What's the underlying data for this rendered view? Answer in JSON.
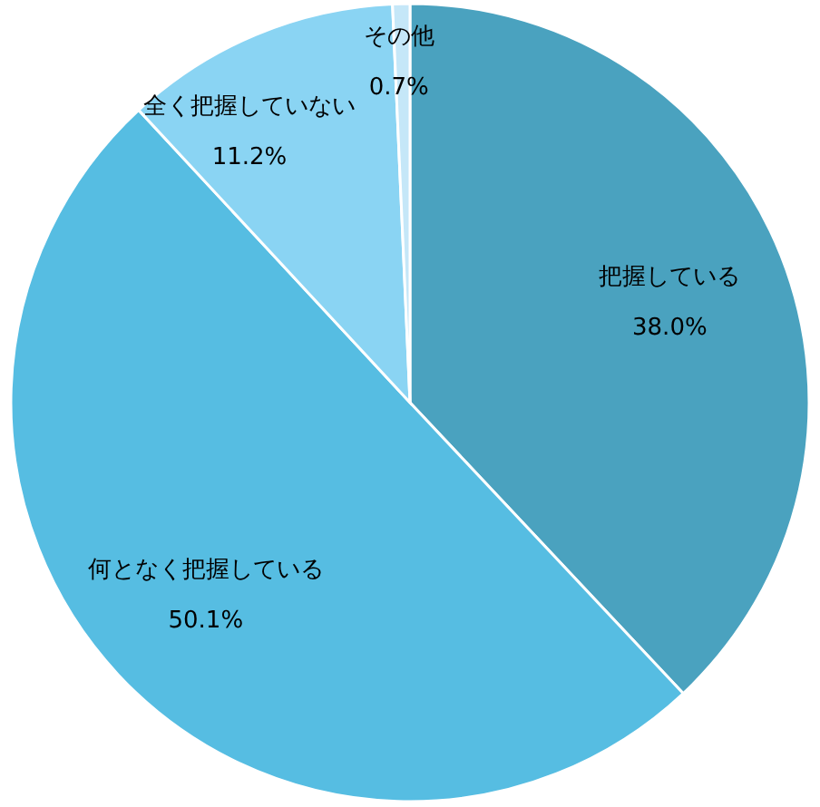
{
  "chart_data": {
    "type": "pie",
    "categories": [
      "把握している",
      "何となく把握している",
      "全く把握していない",
      "その他"
    ],
    "values": [
      38.0,
      50.1,
      11.2,
      0.7
    ],
    "colors": [
      "#4aa2bf",
      "#56bde2",
      "#8ad4f3",
      "#c5e7f8"
    ],
    "value_labels": [
      "38.0%",
      "50.1%",
      "11.2%",
      "0.7%"
    ]
  }
}
